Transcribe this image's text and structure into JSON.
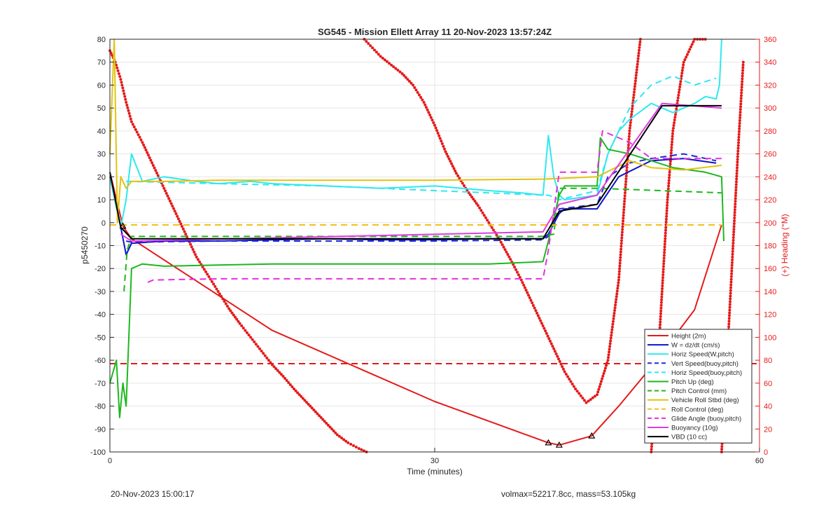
{
  "chart_data": {
    "type": "line",
    "title": "SG545 - Mission Ellett Array 11 20-Nov-2023 13:57:24Z",
    "xlabel": "Time (minutes)",
    "ylabel_left": "p5450270",
    "ylabel_right": "(+) Heading (°M)",
    "xlim": [
      0,
      60
    ],
    "ylim_left": [
      -100,
      80
    ],
    "ylim_right": [
      0,
      360
    ],
    "xticks": [
      0,
      30,
      60
    ],
    "yticks_left": [
      -100,
      -90,
      -80,
      -70,
      -60,
      -50,
      -40,
      -30,
      -20,
      -10,
      0,
      10,
      20,
      30,
      40,
      50,
      60,
      70,
      80
    ],
    "yticks_right": [
      0,
      20,
      40,
      60,
      80,
      100,
      120,
      140,
      160,
      180,
      200,
      220,
      240,
      260,
      280,
      300,
      320,
      340,
      360
    ],
    "grid": true,
    "legend_position": "bottom-right",
    "series": [
      {
        "name": "Height (2m)",
        "color": "#e51a1a",
        "style": "solid",
        "width": 2,
        "x": [
          0,
          1.2,
          2,
          15,
          30,
          40.5,
          41.5,
          44.5,
          47,
          50,
          54,
          56.5
        ],
        "y": [
          22,
          -1.5,
          -7,
          -47,
          -78,
          -96,
          -97,
          -93,
          -80,
          -63,
          -38,
          -1
        ]
      },
      {
        "name": "W = dz/dt (cm/s)",
        "color": "#0b14c8",
        "style": "solid",
        "width": 2,
        "x": [
          0,
          1,
          1.5,
          2,
          5,
          10,
          15,
          20,
          25,
          30,
          35,
          40,
          40.5,
          41.5,
          42,
          45,
          47,
          50,
          53,
          56
        ],
        "y": [
          20,
          -2,
          -14,
          -9,
          -8,
          -8,
          -7.5,
          -7,
          -7.5,
          -7.5,
          -7,
          -7,
          -5,
          4,
          6,
          6,
          20,
          27,
          28,
          26
        ]
      },
      {
        "name": "Horiz Speed(W,pitch)",
        "color": "#2ee8f0",
        "style": "solid",
        "width": 2,
        "x": [
          0,
          1,
          1.5,
          2,
          3,
          5,
          8,
          10,
          13,
          15,
          20,
          25,
          30,
          35,
          38,
          40,
          40.5,
          41,
          41.5,
          42,
          45,
          46,
          47,
          48,
          50,
          52,
          54,
          55,
          56,
          56.3,
          56.5
        ],
        "y": [
          20,
          -2,
          10,
          30,
          18,
          20,
          18,
          17,
          18,
          17,
          16,
          15,
          16,
          14,
          13,
          12,
          38,
          20,
          12,
          10,
          12,
          30,
          40,
          45,
          52,
          48,
          52,
          55,
          54,
          60,
          80
        ]
      },
      {
        "name": "Vert Speed(buoy,pitch)",
        "color": "#1f2ad6",
        "style": "dashed",
        "width": 2,
        "x": [
          1.5,
          2,
          10,
          20,
          30,
          40,
          40.5,
          41.5,
          45,
          46,
          48,
          50,
          53,
          56
        ],
        "y": [
          -8,
          -8.5,
          -8,
          -8,
          -8,
          -7.5,
          -6,
          6,
          8,
          20,
          26,
          28,
          30,
          27
        ]
      },
      {
        "name": "Horiz Speed(buoy,pitch)",
        "color": "#2ee8f0",
        "style": "dashed",
        "width": 2,
        "x": [
          1.5,
          2,
          10,
          20,
          30,
          40,
          40.5,
          41.5,
          45,
          46,
          48,
          50,
          52,
          54,
          56
        ],
        "y": [
          18,
          18,
          17,
          16,
          14,
          12,
          12,
          10,
          14,
          30,
          50,
          60,
          64,
          60,
          63
        ]
      },
      {
        "name": "Pitch Up (deg)",
        "color": "#1db81d",
        "style": "solid",
        "width": 2,
        "x": [
          0,
          0.6,
          0.9,
          1.2,
          1.5,
          2,
          3,
          5,
          10,
          15,
          20,
          25,
          30,
          35,
          40,
          40.5,
          41.5,
          42,
          45,
          45.3,
          46,
          48,
          50,
          52,
          55,
          56.5,
          56.7
        ],
        "y": [
          -70,
          -60,
          -85,
          -70,
          -80,
          -20,
          -18,
          -19,
          -18.5,
          -18,
          -18,
          -18,
          -18,
          -18,
          -17,
          -8,
          12,
          16,
          16,
          37,
          32,
          30,
          27,
          24,
          22,
          20,
          -8
        ]
      },
      {
        "name": "Pitch Control (mm)",
        "color": "#1db81d",
        "style": "dashed",
        "width": 2,
        "x": [
          1.3,
          1.6,
          2,
          40,
          41,
          41.5,
          45,
          56.5
        ],
        "y": [
          -30,
          -12,
          -6,
          -6,
          -5,
          15,
          15,
          13
        ]
      },
      {
        "name": "Vehicle Roll Stbd (deg)",
        "color": "#e0c410",
        "style": "solid",
        "width": 2,
        "x": [
          0,
          0.4,
          0.7,
          1,
          1.5,
          2,
          5,
          10,
          20,
          30,
          40,
          45,
          48,
          50,
          53,
          56.5
        ],
        "y": [
          30,
          80,
          0,
          20,
          15,
          18,
          18,
          18.5,
          18.5,
          18.5,
          19,
          20,
          27,
          24,
          23,
          25
        ]
      },
      {
        "name": "Roll Control (deg)",
        "color": "#f2c01a",
        "style": "dashed",
        "width": 2,
        "x": [
          0,
          56.5
        ],
        "y": [
          -1,
          -1
        ]
      },
      {
        "name": "Glide Angle (buoy,pitch)",
        "color": "#e62ee0",
        "style": "dashed",
        "width": 2,
        "x": [
          3.5,
          4,
          10,
          20,
          30,
          40,
          40.5,
          41.5,
          45,
          45.5,
          48,
          50,
          53,
          56.5
        ],
        "y": [
          -26,
          -25,
          -24.5,
          -24.5,
          -24.5,
          -24.5,
          -12,
          22,
          22,
          40,
          35,
          28,
          28,
          28
        ]
      },
      {
        "name": "Buoyancy (10g)",
        "color": "#e23ae2",
        "style": "solid",
        "width": 2,
        "x": [
          1,
          2,
          40,
          41.5,
          45,
          51,
          56.5
        ],
        "y": [
          -5,
          -8,
          -4,
          8,
          12,
          52,
          50
        ]
      },
      {
        "name": "VBD (10 cc)",
        "color": "#000000",
        "style": "solid",
        "width": 2,
        "x": [
          0,
          1,
          2,
          40,
          41.5,
          45,
          51,
          56.5
        ],
        "y": [
          22,
          -2,
          -7,
          -7,
          5,
          8,
          51,
          51
        ]
      }
    ],
    "heading_series": {
      "name": "heading",
      "color": "#e51a1a",
      "style": "dots",
      "axis": "right",
      "segments": [
        {
          "x": [
            0,
            0.5,
            1,
            1.5,
            2,
            3,
            4,
            5,
            6,
            7,
            8,
            9,
            10,
            11,
            12,
            13,
            14,
            15,
            16,
            17,
            18,
            19,
            20,
            21,
            22,
            23,
            23.7
          ],
          "y": [
            350,
            340,
            325,
            305,
            288,
            270,
            250,
            230,
            210,
            190,
            170,
            155,
            140,
            125,
            112,
            100,
            88,
            76,
            66,
            55,
            45,
            35,
            25,
            15,
            8,
            3,
            0
          ]
        },
        {
          "x": [
            23.5,
            25,
            27,
            28,
            29,
            30,
            31,
            32,
            33,
            34,
            35,
            36,
            37,
            38,
            39,
            40,
            41,
            42,
            43,
            44,
            45,
            46,
            47,
            48,
            49
          ],
          "y": [
            360,
            345,
            330,
            320,
            305,
            285,
            262,
            243,
            228,
            215,
            200,
            185,
            168,
            150,
            130,
            110,
            90,
            70,
            55,
            43,
            50,
            80,
            150,
            280,
            360
          ]
        },
        {
          "x": [
            50,
            50.5,
            51,
            51.5,
            52,
            53,
            54,
            55
          ],
          "y": [
            0,
            60,
            140,
            220,
            280,
            340,
            360,
            360
          ]
        },
        {
          "x": [
            56.5,
            57,
            57.5,
            58,
            58.5
          ],
          "y": [
            0,
            80,
            170,
            260,
            340
          ]
        }
      ]
    },
    "hline": {
      "y": -61.5,
      "color": "#e51a1a",
      "style": "dashed"
    },
    "markers": [
      {
        "x": 1.2,
        "y": -1.5
      },
      {
        "x": 40.5,
        "y": -96
      },
      {
        "x": 41.5,
        "y": -97
      },
      {
        "x": 44.5,
        "y": -93
      }
    ]
  },
  "footer": {
    "left": "20-Nov-2023 15:00:17",
    "right": "volmax=52217.8cc, mass=53.105kg"
  }
}
